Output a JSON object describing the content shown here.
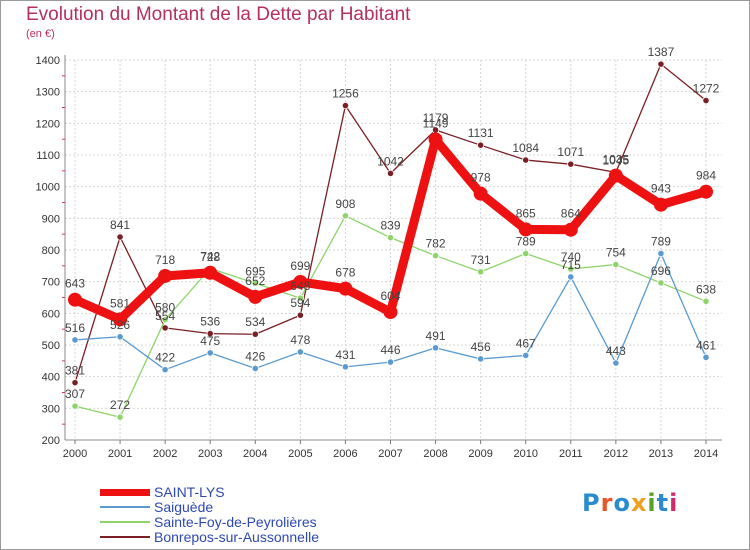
{
  "chart_data": {
    "type": "line",
    "title": "Evolution du Montant de la Dette par Habitant",
    "unit_label": "(en €)",
    "x": [
      "2000",
      "2001",
      "2002",
      "2003",
      "2004",
      "2005",
      "2006",
      "2007",
      "2008",
      "2009",
      "2010",
      "2011",
      "2012",
      "2013",
      "2014"
    ],
    "ylim": [
      200,
      1400
    ],
    "y_ticks": [
      200,
      300,
      400,
      500,
      600,
      700,
      800,
      900,
      1000,
      1100,
      1200,
      1300,
      1400
    ],
    "grid": true,
    "legend_position": "bottom-left",
    "series": [
      {
        "name": "Bonrepos-sur-Aussonnelle",
        "color": "#7a1f24",
        "values": [
          381,
          841,
          554,
          536,
          534,
          594,
          1256,
          1042,
          1179,
          1131,
          1084,
          1071,
          1045,
          1387,
          1272
        ]
      },
      {
        "name": "Sainte-Foy-de-Peyrolières",
        "color": "#8fd46b",
        "values": [
          307,
          272,
          580,
          742,
          695,
          648,
          908,
          839,
          782,
          731,
          789,
          740,
          754,
          696,
          638
        ]
      },
      {
        "name": "Saiguède",
        "color": "#5a9ad0",
        "values": [
          516,
          526,
          422,
          475,
          426,
          478,
          431,
          446,
          491,
          456,
          467,
          715,
          443,
          789,
          461
        ]
      },
      {
        "name": "SAINT-LYS",
        "color": "#ee1111",
        "values": [
          643,
          581,
          718,
          728,
          652,
          699,
          678,
          604,
          1149,
          978,
          865,
          864,
          1035,
          943,
          984
        ]
      }
    ]
  },
  "legend": [
    {
      "name": "SAINT-LYS",
      "color": "#ee1111",
      "thickness": 7
    },
    {
      "name": "Saiguède",
      "color": "#5a9ad0",
      "thickness": 2
    },
    {
      "name": "Sainte-Foy-de-Peyrolières",
      "color": "#8fd46b",
      "thickness": 2
    },
    {
      "name": "Bonrepos-sur-Aussonnelle",
      "color": "#7a1f24",
      "thickness": 2
    }
  ],
  "brand": {
    "text": "Proxiti",
    "colors": [
      "#2a8bd0",
      "#e8532a",
      "#2a8bd0",
      "#f0a020",
      "#5aa02a",
      "#2a8bd0",
      "#d02a6a"
    ]
  }
}
